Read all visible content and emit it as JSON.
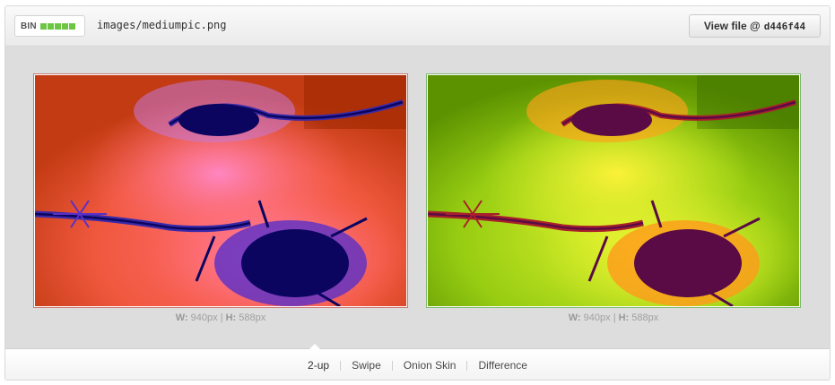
{
  "header": {
    "badge_label": "BIN",
    "file_path": "images/mediumpic.png",
    "view_file_label": "View file @",
    "commit_sha": "d446f44"
  },
  "colors": {
    "bin_green": "#6cc644",
    "deleted_border": "#c87872",
    "added_border": "#7fb872"
  },
  "images": [
    {
      "side": "deleted",
      "w_label": "W:",
      "w_value": "940px",
      "sep": "|",
      "h_label": "H:",
      "h_value": "588px"
    },
    {
      "side": "added",
      "w_label": "W:",
      "w_value": "940px",
      "sep": "|",
      "h_label": "H:",
      "h_value": "588px"
    }
  ],
  "modes": [
    {
      "label": "2-up",
      "active": true
    },
    {
      "label": "Swipe",
      "active": false
    },
    {
      "label": "Onion Skin",
      "active": false
    },
    {
      "label": "Difference",
      "active": false
    }
  ]
}
